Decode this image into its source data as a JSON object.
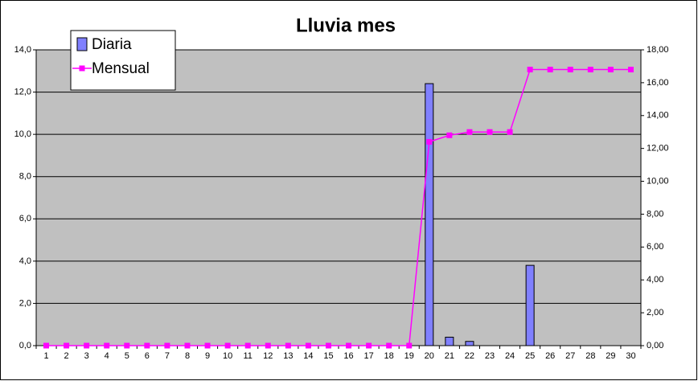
{
  "chart_data": {
    "type": "combo",
    "title": "Lluvia mes",
    "categories": [
      "1",
      "2",
      "3",
      "4",
      "5",
      "6",
      "7",
      "8",
      "9",
      "10",
      "11",
      "12",
      "13",
      "14",
      "15",
      "16",
      "17",
      "18",
      "19",
      "20",
      "21",
      "22",
      "23",
      "24",
      "25",
      "26",
      "27",
      "28",
      "29",
      "30"
    ],
    "series": [
      {
        "name": "Diaria",
        "type": "bar",
        "color": "#8080ff",
        "values": [
          0,
          0,
          0,
          0,
          0,
          0,
          0,
          0,
          0,
          0,
          0,
          0,
          0,
          0,
          0,
          0,
          0,
          0,
          0,
          12.4,
          0.4,
          0.2,
          0,
          0,
          3.8,
          0,
          0,
          0,
          0,
          0
        ]
      },
      {
        "name": "Mensual",
        "type": "line",
        "color": "#ff00ff",
        "axis": "y2",
        "values": [
          0,
          0,
          0,
          0,
          0,
          0,
          0,
          0,
          0,
          0,
          0,
          0,
          0,
          0,
          0,
          0,
          0,
          0,
          0,
          12.4,
          12.8,
          13.0,
          13.0,
          13.0,
          16.8,
          16.8,
          16.8,
          16.8,
          16.8,
          16.8
        ]
      }
    ],
    "ylim": [
      0,
      14
    ],
    "yticks": [
      {
        "value": 0,
        "label": "0,0"
      },
      {
        "value": 2,
        "label": "2,0"
      },
      {
        "value": 4,
        "label": "4,0"
      },
      {
        "value": 6,
        "label": "6,0"
      },
      {
        "value": 8,
        "label": "8,0"
      },
      {
        "value": 10,
        "label": "10,0"
      },
      {
        "value": 12,
        "label": "12,0"
      },
      {
        "value": 14,
        "label": "14,0"
      }
    ],
    "y2lim": [
      0,
      18
    ],
    "y2ticks": [
      {
        "value": 0,
        "label": "0,00"
      },
      {
        "value": 2,
        "label": "2,00"
      },
      {
        "value": 4,
        "label": "4,00"
      },
      {
        "value": 6,
        "label": "6,00"
      },
      {
        "value": 8,
        "label": "8,00"
      },
      {
        "value": 10,
        "label": "10,00"
      },
      {
        "value": 12,
        "label": "12,00"
      },
      {
        "value": 14,
        "label": "14,00"
      },
      {
        "value": 16,
        "label": "16,00"
      },
      {
        "value": 18,
        "label": "18,00"
      }
    ],
    "grid": true,
    "legend": "top-left",
    "plot_background": "#c0c0c0"
  }
}
